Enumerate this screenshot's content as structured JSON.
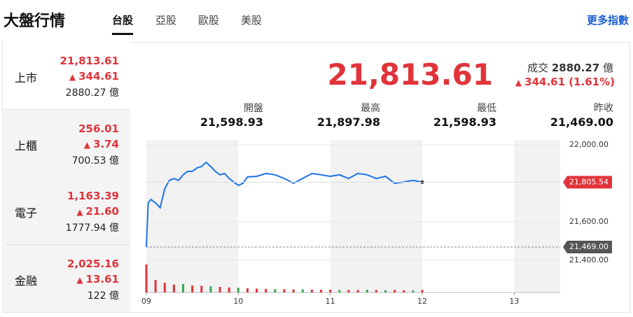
{
  "header": {
    "title": "大盤行情",
    "tabs": [
      "台股",
      "亞股",
      "歐股",
      "美股"
    ],
    "more": "更多指數"
  },
  "markets": [
    {
      "name": "上市",
      "price": "21,813.61",
      "change": "344.61",
      "volume": "2880.27 億"
    },
    {
      "name": "上櫃",
      "price": "256.01",
      "change": "3.74",
      "volume": "700.53 億"
    },
    {
      "name": "電子",
      "price": "1,163.39",
      "change": "21.60",
      "volume": "1777.94 億"
    },
    {
      "name": "金融",
      "price": "2,025.16",
      "change": "13.61",
      "volume": "122 億"
    }
  ],
  "quote": {
    "price": "21,813.61",
    "volume_label": "成交",
    "volume": "2880.27",
    "volume_unit": "億",
    "change": "344.61 (1.61%)"
  },
  "stats": [
    {
      "label": "開盤",
      "value": "21,598.93"
    },
    {
      "label": "最高",
      "value": "21,897.98"
    },
    {
      "label": "最低",
      "value": "21,598.93"
    },
    {
      "label": "昨收",
      "value": "21,469.00"
    }
  ],
  "chart_data": {
    "type": "line",
    "color": "#1a73e8",
    "x": [
      9.0,
      9.02,
      9.05,
      9.1,
      9.15,
      9.2,
      9.25,
      9.3,
      9.35,
      9.4,
      9.45,
      9.5,
      9.55,
      9.6,
      9.65,
      9.7,
      9.75,
      9.8,
      9.85,
      9.9,
      9.95,
      10.0,
      10.05,
      10.1,
      10.2,
      10.3,
      10.4,
      10.5,
      10.6,
      10.7,
      10.8,
      10.9,
      11.0,
      11.1,
      11.2,
      11.3,
      11.4,
      11.5,
      11.6,
      11.7,
      11.8,
      11.9,
      12.0
    ],
    "values": [
      21470,
      21698,
      21716,
      21698,
      21673,
      21771,
      21815,
      21825,
      21815,
      21844,
      21862,
      21862,
      21880,
      21887,
      21909,
      21887,
      21862,
      21844,
      21851,
      21825,
      21807,
      21789,
      21800,
      21833,
      21836,
      21851,
      21844,
      21825,
      21800,
      21825,
      21851,
      21844,
      21836,
      21844,
      21825,
      21851,
      21844,
      21825,
      21836,
      21800,
      21807,
      21815,
      21806
    ],
    "xlim": [
      9,
      13.5
    ],
    "xticks": [
      {
        "value": 9,
        "label": "09"
      },
      {
        "value": 10,
        "label": "10"
      },
      {
        "value": 11,
        "label": "11"
      },
      {
        "value": 12,
        "label": "12"
      },
      {
        "value": 13,
        "label": "13"
      }
    ],
    "ylim": [
      21400,
      22025
    ],
    "yticks": [
      {
        "value": 22000,
        "label": "22,000.00"
      },
      {
        "value": 21600,
        "label": "21,600.00"
      },
      {
        "value": 21400,
        "label": "21,400.00"
      }
    ],
    "current": {
      "value": 21805.54,
      "label": "21,805.54"
    },
    "reference": {
      "value": 21469,
      "label": "21,469.00"
    },
    "volume": {
      "x": [
        9.0,
        9.1,
        9.2,
        9.3,
        9.4,
        9.5,
        9.6,
        9.7,
        9.8,
        9.9,
        10.0,
        10.1,
        10.2,
        10.3,
        10.4,
        10.5,
        10.6,
        10.7,
        10.8,
        10.9,
        11.0,
        11.1,
        11.2,
        11.3,
        11.4,
        11.5,
        11.6,
        11.7,
        11.8,
        11.9,
        12.0
      ],
      "values": [
        100,
        45,
        35,
        28,
        30,
        25,
        24,
        22,
        20,
        18,
        17,
        15,
        14,
        13,
        12,
        12,
        11,
        11,
        10,
        10,
        10,
        9,
        9,
        9,
        10,
        9,
        8,
        9,
        8,
        8,
        9
      ],
      "colors": [
        "#e0343a",
        "#e0343a",
        "#e0343a",
        "#e0343a",
        "#3aa655",
        "#e0343a",
        "#e0343a",
        "#3aa655",
        "#e0343a",
        "#e0343a",
        "#3aa655",
        "#e0343a",
        "#e0343a",
        "#e0343a",
        "#3aa655",
        "#e0343a",
        "#e0343a",
        "#3aa655",
        "#e0343a",
        "#e0343a",
        "#e0343a",
        "#3aa655",
        "#e0343a",
        "#e0343a",
        "#3aa655",
        "#e0343a",
        "#3aa655",
        "#e0343a",
        "#e0343a",
        "#3aa655",
        "#e0343a"
      ]
    }
  }
}
